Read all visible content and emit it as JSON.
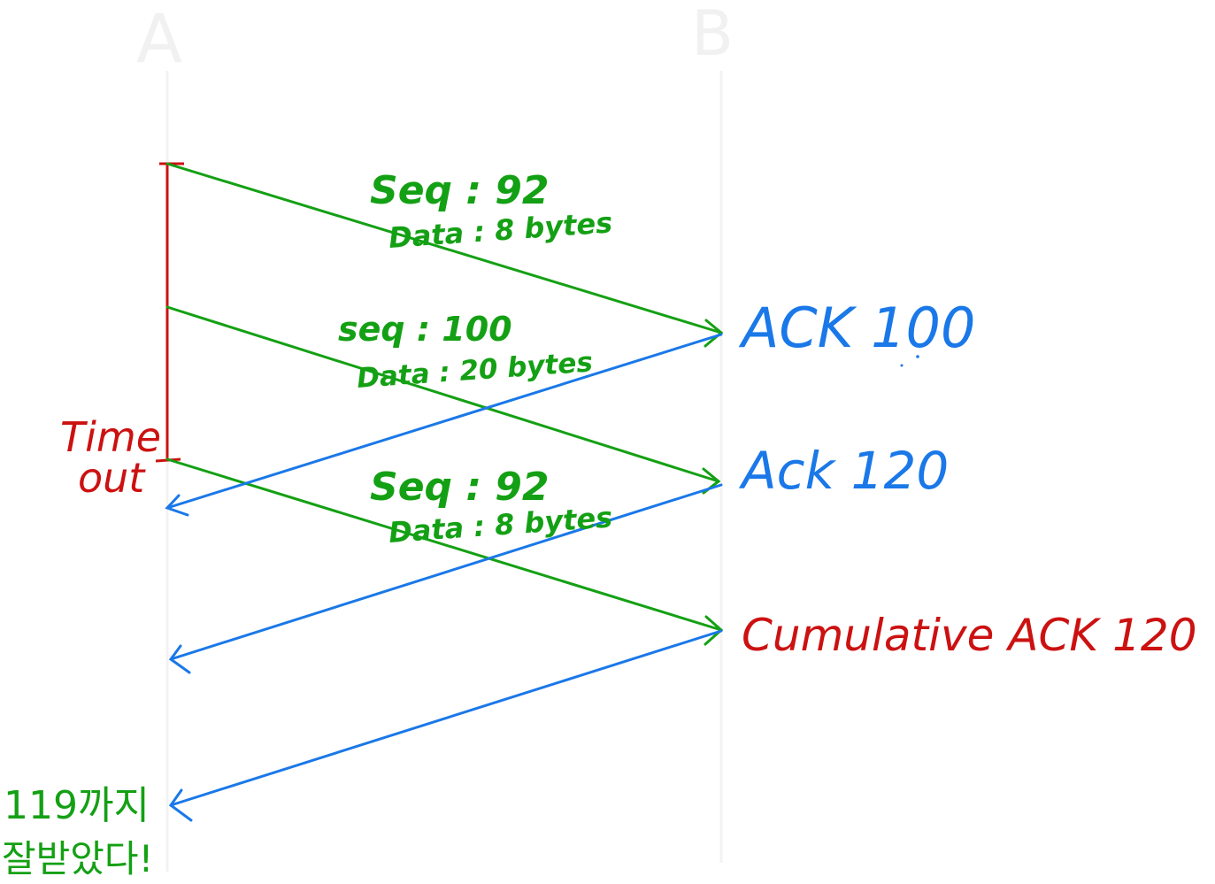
{
  "hosts": {
    "a": "A",
    "b": "B"
  },
  "segments": [
    {
      "seq": "Seq : 92",
      "data": "Data : 8 bytes"
    },
    {
      "seq": "seq : 100",
      "data": "Data : 20 bytes"
    },
    {
      "seq": "Seq : 92",
      "data": "Data : 8 bytes"
    }
  ],
  "acks": [
    "ACK 100",
    "Ack 120",
    "Cumulative ACK 120"
  ],
  "timeout": {
    "line1": "Time",
    "line2": "out"
  },
  "note": {
    "line1": "119까지",
    "line2": "잘받았다!"
  },
  "colors": {
    "segment": "#14a014",
    "ack": "#1a78e8",
    "timeout": "#cc1111",
    "cumulative_ack": "#cc1111"
  }
}
